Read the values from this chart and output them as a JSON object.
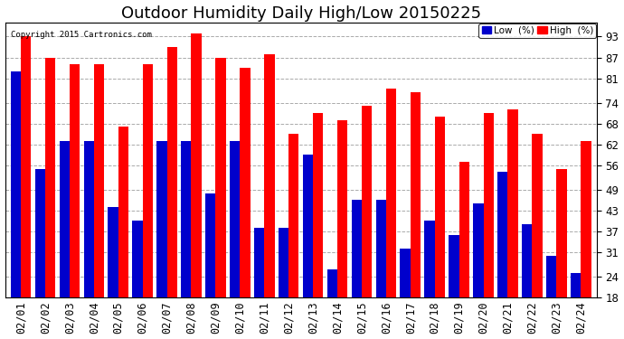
{
  "title": "Outdoor Humidity Daily High/Low 20150225",
  "copyright": "Copyright 2015 Cartronics.com",
  "categories": [
    "02/01",
    "02/02",
    "02/03",
    "02/04",
    "02/05",
    "02/06",
    "02/07",
    "02/08",
    "02/09",
    "02/10",
    "02/11",
    "02/12",
    "02/13",
    "02/14",
    "02/15",
    "02/16",
    "02/17",
    "02/18",
    "02/19",
    "02/20",
    "02/21",
    "02/22",
    "02/23",
    "02/24"
  ],
  "high_values": [
    93,
    87,
    85,
    85,
    67,
    85,
    90,
    94,
    87,
    84,
    88,
    65,
    71,
    69,
    73,
    78,
    77,
    70,
    57,
    71,
    72,
    65,
    55,
    63
  ],
  "low_values": [
    83,
    55,
    63,
    63,
    44,
    40,
    63,
    63,
    48,
    63,
    38,
    38,
    59,
    26,
    46,
    46,
    32,
    40,
    36,
    45,
    54,
    39,
    30,
    25
  ],
  "high_color": "#ff0000",
  "low_color": "#0000cc",
  "bg_color": "#ffffff",
  "plot_bg_color": "#ffffff",
  "grid_color": "#aaaaaa",
  "yticks": [
    18,
    24,
    31,
    37,
    43,
    49,
    56,
    62,
    68,
    74,
    81,
    87,
    93
  ],
  "ymin": 18,
  "ymax": 97,
  "bar_width": 0.42,
  "title_fontsize": 13,
  "tick_fontsize": 8.5,
  "legend_low_label": "Low  (%)",
  "legend_high_label": "High  (%)"
}
